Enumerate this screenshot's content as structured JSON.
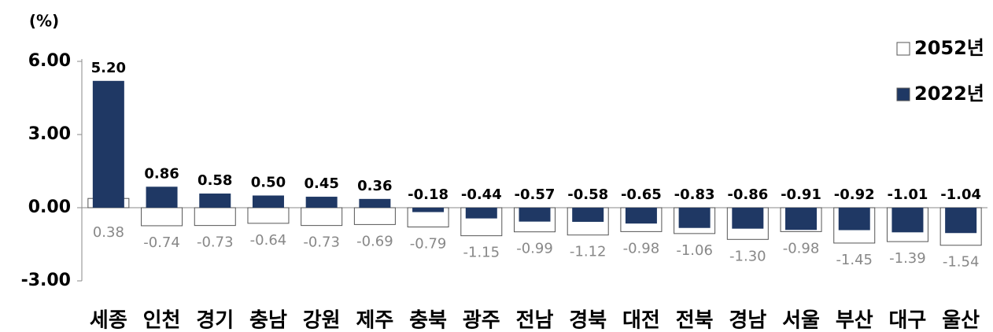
{
  "chart_data": {
    "type": "bar",
    "y_label": "(%)",
    "categories": [
      "세종",
      "인천",
      "경기",
      "충남",
      "강원",
      "제주",
      "충북",
      "광주",
      "전남",
      "경북",
      "대전",
      "전북",
      "경남",
      "서울",
      "부산",
      "대구",
      "울산"
    ],
    "series": [
      {
        "name": "2052년",
        "color": "#ffffff",
        "values": [
          0.38,
          -0.74,
          -0.73,
          -0.64,
          -0.73,
          -0.69,
          -0.79,
          -1.15,
          -0.99,
          -1.12,
          -0.98,
          -1.06,
          -1.3,
          -0.98,
          -1.45,
          -1.39,
          -1.54
        ],
        "value_labels": [
          "0.38",
          "-0.74",
          "-0.73",
          "-0.64",
          "-0.73",
          "-0.69",
          "-0.79",
          "-1.15",
          "-0.99",
          "-1.12",
          "-0.98",
          "-1.06",
          "-1.30",
          "-0.98",
          "-1.45",
          "-1.39",
          "-1.54"
        ]
      },
      {
        "name": "2022년",
        "color": "#1f3864",
        "values": [
          5.2,
          0.86,
          0.58,
          0.5,
          0.45,
          0.36,
          -0.18,
          -0.44,
          -0.57,
          -0.58,
          -0.65,
          -0.83,
          -0.86,
          -0.91,
          -0.92,
          -1.01,
          -1.04
        ],
        "value_labels": [
          "5.20",
          "0.86",
          "0.58",
          "0.50",
          "0.45",
          "0.36",
          "-0.18",
          "-0.44",
          "-0.57",
          "-0.58",
          "-0.65",
          "-0.83",
          "-0.86",
          "-0.91",
          "-0.92",
          "-1.01",
          "-1.04"
        ]
      }
    ],
    "ylim": [
      -3,
      6
    ],
    "yticks": [
      {
        "value": -3,
        "label": "-3.00"
      },
      {
        "value": 0,
        "label": "0.00"
      },
      {
        "value": 3,
        "label": "3.00"
      },
      {
        "value": 6,
        "label": "6.00"
      }
    ],
    "legend": "top-right"
  }
}
